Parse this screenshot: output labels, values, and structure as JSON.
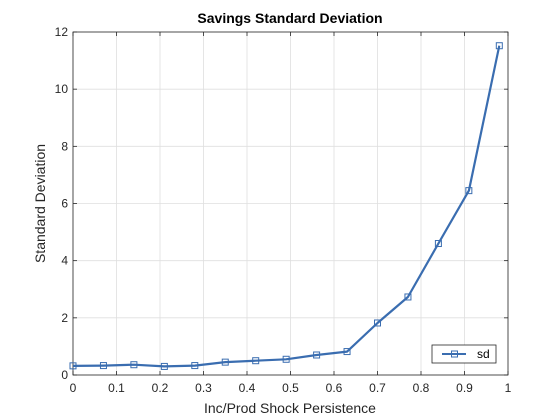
{
  "chart_data": {
    "type": "line",
    "title": "Savings Standard Deviation",
    "xlabel": "Inc/Prod Shock Persistence",
    "ylabel": "Standard Deviation",
    "xlim": [
      0,
      1
    ],
    "ylim": [
      0,
      12
    ],
    "xticks": [
      0,
      0.1,
      0.2,
      0.3,
      0.4,
      0.5,
      0.6,
      0.7,
      0.8,
      0.9,
      1
    ],
    "xtick_labels": [
      "0",
      "0.1",
      "0.2",
      "0.3",
      "0.4",
      "0.5",
      "0.6",
      "0.7",
      "0.8",
      "0.9",
      "1"
    ],
    "yticks": [
      0,
      2,
      4,
      6,
      8,
      10,
      12
    ],
    "ytick_labels": [
      "0",
      "2",
      "4",
      "6",
      "8",
      "10",
      "12"
    ],
    "grid": true,
    "legend_position": "bottom-right",
    "series": [
      {
        "name": "sd",
        "color": "#3a6db0",
        "marker": "square",
        "x": [
          0.0,
          0.07,
          0.14,
          0.21,
          0.28,
          0.35,
          0.42,
          0.49,
          0.56,
          0.63,
          0.7,
          0.77,
          0.84,
          0.91,
          0.98
        ],
        "y": [
          0.32,
          0.33,
          0.36,
          0.3,
          0.33,
          0.45,
          0.5,
          0.55,
          0.7,
          0.82,
          1.82,
          2.73,
          4.6,
          6.45,
          11.52
        ]
      }
    ]
  }
}
